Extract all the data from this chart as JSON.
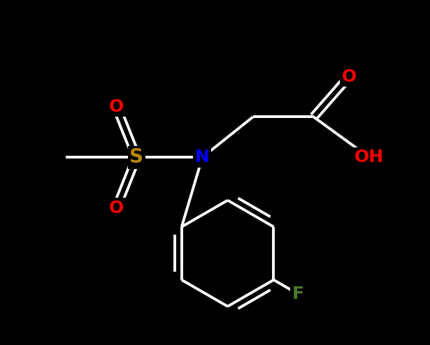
{
  "bg_color": "#000000",
  "bond_color": "#ffffff",
  "bond_width": 2.8,
  "atom_colors": {
    "O": "#ff0000",
    "S": "#b8860b",
    "N": "#0000ff",
    "F": "#4a7c2f",
    "C": "#ffffff",
    "H": "#ffffff"
  },
  "font_size_atom": 18,
  "figsize": [
    6.15,
    4.94
  ],
  "dpi": 100
}
